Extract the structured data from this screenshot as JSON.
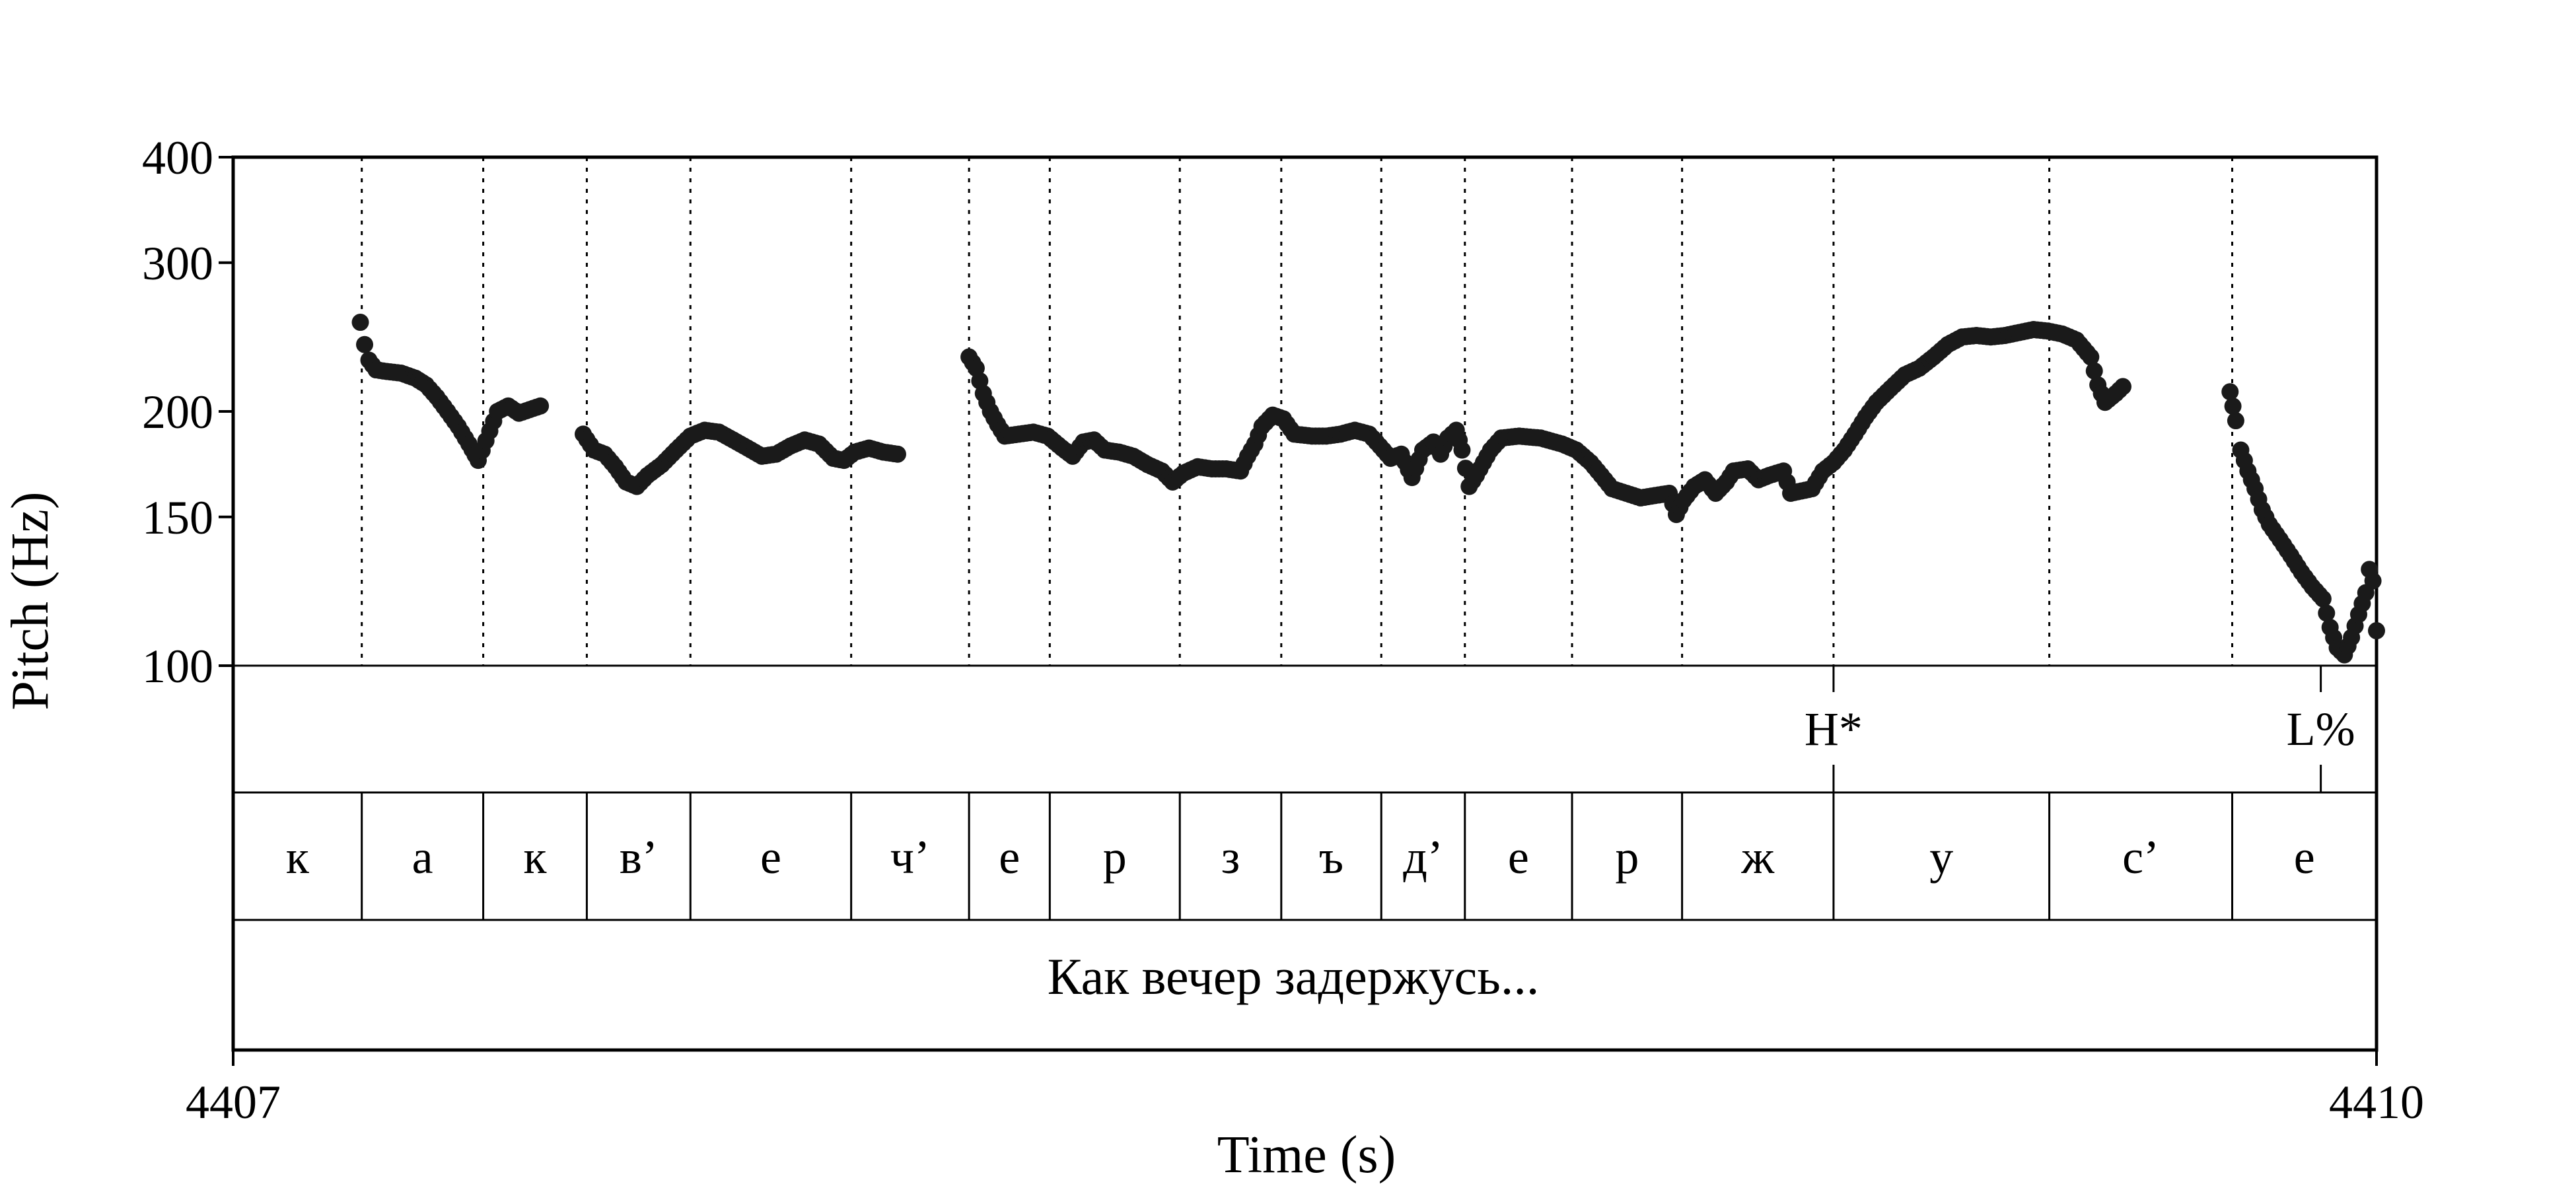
{
  "chart_data": {
    "type": "scatter",
    "ylabel": "Pitch (Hz)",
    "xlabel": "Time (s)",
    "y_scale": "log",
    "ylim": [
      100,
      400
    ],
    "xlim": [
      4407,
      4410
    ],
    "y_ticks": [
      "100",
      "150",
      "200",
      "300",
      "400"
    ],
    "x_ticks": [
      "4407",
      "4410"
    ],
    "marker_color": "#1a1a1a",
    "segments": [
      {
        "label": "к",
        "start": 4407.0,
        "end": 4407.18
      },
      {
        "label": "а",
        "start": 4407.18,
        "end": 4407.35
      },
      {
        "label": "к",
        "start": 4407.35,
        "end": 4407.495
      },
      {
        "label": "в’",
        "start": 4407.495,
        "end": 4407.64
      },
      {
        "label": "е",
        "start": 4407.64,
        "end": 4407.865
      },
      {
        "label": "ч’",
        "start": 4407.865,
        "end": 4408.03
      },
      {
        "label": "е",
        "start": 4408.03,
        "end": 4408.143
      },
      {
        "label": "р",
        "start": 4408.143,
        "end": 4408.325
      },
      {
        "label": "з",
        "start": 4408.325,
        "end": 4408.467
      },
      {
        "label": "ъ",
        "start": 4408.467,
        "end": 4408.607
      },
      {
        "label": "д’",
        "start": 4408.607,
        "end": 4408.724
      },
      {
        "label": "е",
        "start": 4408.724,
        "end": 4408.874
      },
      {
        "label": "р",
        "start": 4408.874,
        "end": 4409.028
      },
      {
        "label": "ж",
        "start": 4409.028,
        "end": 4409.24
      },
      {
        "label": "у",
        "start": 4409.24,
        "end": 4409.542
      },
      {
        "label": "с’",
        "start": 4409.542,
        "end": 4409.798
      },
      {
        "label": "е",
        "start": 4409.798,
        "end": 4410.0
      }
    ],
    "tones": [
      {
        "label": "H*",
        "time": 4409.24
      },
      {
        "label": "L%",
        "time": 4409.922
      }
    ],
    "sentence": "Как вечер задержусь...",
    "series": [
      {
        "points": [
          [
            4407.178,
            255
          ],
          [
            4407.184,
            240
          ],
          [
            4407.19,
            230
          ],
          [
            4407.2,
            224
          ],
          [
            4407.215,
            223
          ],
          [
            4407.235,
            222
          ],
          [
            4407.255,
            219
          ],
          [
            4407.27,
            215
          ],
          [
            4407.285,
            208
          ],
          [
            4407.3,
            200
          ],
          [
            4407.315,
            192
          ],
          [
            4407.33,
            183
          ],
          [
            4407.343,
            175
          ],
          [
            4407.37,
            200
          ],
          [
            4407.385,
            203
          ],
          [
            4407.4,
            199
          ],
          [
            4407.415,
            201
          ],
          [
            4407.43,
            203
          ],
          [
            4407.49,
            188
          ],
          [
            4407.505,
            180
          ],
          [
            4407.52,
            178
          ],
          [
            4407.535,
            172
          ],
          [
            4407.55,
            165
          ],
          [
            4407.565,
            163
          ],
          [
            4407.58,
            168
          ],
          [
            4407.6,
            173
          ],
          [
            4407.62,
            180
          ],
          [
            4407.64,
            187
          ],
          [
            4407.66,
            190
          ],
          [
            4407.68,
            189
          ],
          [
            4407.7,
            185
          ],
          [
            4407.72,
            181
          ],
          [
            4407.74,
            177
          ],
          [
            4407.76,
            178
          ],
          [
            4407.78,
            182
          ],
          [
            4407.8,
            185
          ],
          [
            4407.82,
            183
          ],
          [
            4407.84,
            176
          ],
          [
            4407.855,
            175
          ],
          [
            4407.87,
            179
          ],
          [
            4407.89,
            181
          ],
          [
            4407.91,
            179
          ],
          [
            4407.93,
            178
          ],
          [
            4408.03,
            232
          ],
          [
            4408.04,
            225
          ],
          [
            4408.05,
            210
          ],
          [
            4408.06,
            200
          ],
          [
            4408.07,
            193
          ],
          [
            4408.08,
            187
          ],
          [
            4408.1,
            188
          ],
          [
            4408.12,
            189
          ],
          [
            4408.14,
            187
          ],
          [
            4408.16,
            181
          ],
          [
            4408.175,
            177
          ],
          [
            4408.19,
            184
          ],
          [
            4408.205,
            185
          ],
          [
            4408.22,
            180
          ],
          [
            4408.24,
            179
          ],
          [
            4408.26,
            177
          ],
          [
            4408.28,
            173
          ],
          [
            4408.3,
            170
          ],
          [
            4408.315,
            165
          ],
          [
            4408.33,
            169
          ],
          [
            4408.35,
            172
          ],
          [
            4408.37,
            171
          ],
          [
            4408.39,
            171
          ],
          [
            4408.41,
            170
          ],
          [
            4408.42,
            177
          ],
          [
            4408.43,
            183
          ],
          [
            4408.44,
            192
          ],
          [
            4408.455,
            198
          ],
          [
            4408.47,
            196
          ],
          [
            4408.485,
            188
          ],
          [
            4408.51,
            187
          ],
          [
            4408.53,
            187
          ],
          [
            4408.55,
            188
          ],
          [
            4408.57,
            190
          ],
          [
            4408.59,
            188
          ],
          [
            4408.605,
            182
          ],
          [
            4408.62,
            176
          ],
          [
            4408.635,
            178
          ],
          [
            4408.65,
            167
          ],
          [
            4408.665,
            180
          ],
          [
            4408.68,
            184
          ],
          [
            4408.69,
            178
          ],
          [
            4408.7,
            186
          ],
          [
            4408.712,
            190
          ],
          [
            4408.72,
            180
          ],
          [
            4408.73,
            163
          ],
          [
            4408.74,
            168
          ],
          [
            4408.75,
            174
          ],
          [
            4408.76,
            180
          ],
          [
            4408.775,
            186
          ],
          [
            4408.8,
            187
          ],
          [
            4408.83,
            186
          ],
          [
            4408.86,
            183
          ],
          [
            4408.88,
            180
          ],
          [
            4408.9,
            174
          ],
          [
            4408.915,
            168
          ],
          [
            4408.93,
            162
          ],
          [
            4408.95,
            160
          ],
          [
            4408.97,
            158
          ],
          [
            4408.99,
            159
          ],
          [
            4409.01,
            160
          ],
          [
            4409.02,
            151
          ],
          [
            4409.03,
            157
          ],
          [
            4409.045,
            163
          ],
          [
            4409.06,
            166
          ],
          [
            4409.075,
            160
          ],
          [
            4409.09,
            165
          ],
          [
            4409.1,
            170
          ],
          [
            4409.12,
            171
          ],
          [
            4409.135,
            166
          ],
          [
            4409.15,
            168
          ],
          [
            4409.17,
            170
          ],
          [
            4409.18,
            160
          ],
          [
            4409.195,
            161
          ],
          [
            4409.21,
            162
          ],
          [
            4409.225,
            170
          ],
          [
            4409.24,
            174
          ],
          [
            4409.255,
            180
          ],
          [
            4409.27,
            188
          ],
          [
            4409.285,
            197
          ],
          [
            4409.3,
            205
          ],
          [
            4409.32,
            213
          ],
          [
            4409.34,
            221
          ],
          [
            4409.36,
            225
          ],
          [
            4409.38,
            232
          ],
          [
            4409.4,
            240
          ],
          [
            4409.42,
            245
          ],
          [
            4409.44,
            246
          ],
          [
            4409.46,
            245
          ],
          [
            4409.48,
            246
          ],
          [
            4409.5,
            248
          ],
          [
            4409.52,
            250
          ],
          [
            4409.54,
            249
          ],
          [
            4409.56,
            247
          ],
          [
            4409.58,
            243
          ],
          [
            4409.6,
            232
          ],
          [
            4409.61,
            215
          ],
          [
            4409.62,
            205
          ],
          [
            4409.635,
            210
          ],
          [
            4409.645,
            214
          ],
          [
            4409.795,
            211
          ],
          [
            4409.803,
            195
          ],
          [
            4409.81,
            180
          ],
          [
            4409.82,
            170
          ],
          [
            4409.83,
            162
          ],
          [
            4409.84,
            153
          ],
          [
            4409.85,
            147
          ],
          [
            4409.865,
            141
          ],
          [
            4409.88,
            135
          ],
          [
            4409.895,
            129
          ],
          [
            4409.91,
            124
          ],
          [
            4409.925,
            120
          ],
          [
            4409.935,
            111
          ],
          [
            4409.945,
            105
          ],
          [
            4409.955,
            103
          ],
          [
            4409.965,
            108
          ],
          [
            4409.975,
            115
          ],
          [
            4409.985,
            122
          ],
          [
            4409.99,
            130
          ],
          [
            4409.995,
            126
          ],
          [
            4410.0,
            110
          ]
        ]
      }
    ]
  }
}
